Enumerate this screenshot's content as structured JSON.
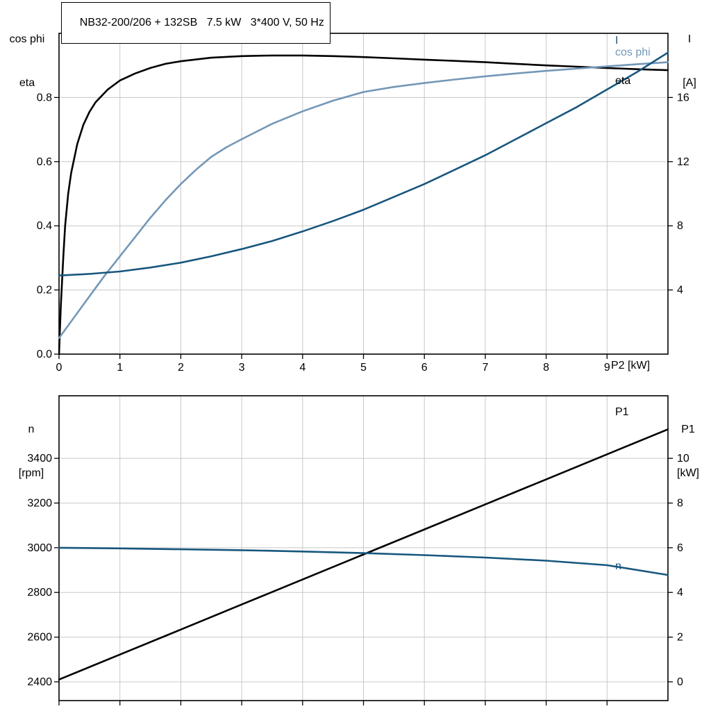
{
  "window": {
    "background": "#ffffff"
  },
  "colors": {
    "eta": "#000000",
    "cos_phi": "#7397B7",
    "current": "#17567E",
    "grid": "#c8c8c8",
    "frame": "#000000"
  },
  "title_box": {
    "text": "NB32-200/206 + 132SB   7.5 kW   3*400 V, 50 Hz"
  },
  "chart_data": [
    {
      "id": "motor-top",
      "type": "line",
      "title": "NB32-200/206 + 132SB   7.5 kW   3*400 V, 50 Hz",
      "grid": true,
      "legend_position": "right-inside",
      "x_axis": {
        "label": "P2 [kW]",
        "min": 0,
        "max": 10,
        "ticks": [
          0,
          1,
          2,
          3,
          4,
          5,
          6,
          7,
          8,
          9
        ],
        "tick_labels": [
          "0",
          "1",
          "2",
          "3",
          "4",
          "5",
          "6",
          "7",
          "8",
          "9"
        ]
      },
      "y_left": {
        "title_lines": [
          "cos phi",
          "eta"
        ],
        "min": 0,
        "max": 1.0,
        "ticks": [
          0,
          0.2,
          0.4,
          0.6,
          0.8
        ],
        "tick_labels": [
          "0.0",
          "0.2",
          "0.4",
          "0.6",
          "0.8"
        ]
      },
      "y_right": {
        "title_lines": [
          "I",
          "[A]"
        ],
        "min": 0,
        "max": 20,
        "ticks": [
          4,
          8,
          12,
          16
        ],
        "tick_labels": [
          "4",
          "8",
          "12",
          "16"
        ]
      },
      "series": [
        {
          "name": "eta",
          "axis": "left",
          "color": "#000000",
          "x": [
            0,
            0.03,
            0.07,
            0.1,
            0.15,
            0.2,
            0.3,
            0.4,
            0.5,
            0.6,
            0.8,
            1,
            1.25,
            1.5,
            1.75,
            2,
            2.5,
            3,
            3.5,
            4,
            4.5,
            5,
            5.5,
            6,
            6.5,
            7,
            7.5,
            8,
            8.5,
            9,
            9.5,
            10
          ],
          "values": [
            0,
            0.15,
            0.3,
            0.4,
            0.5,
            0.565,
            0.655,
            0.715,
            0.755,
            0.785,
            0.825,
            0.853,
            0.875,
            0.892,
            0.905,
            0.913,
            0.924,
            0.929,
            0.931,
            0.931,
            0.929,
            0.926,
            0.922,
            0.918,
            0.914,
            0.91,
            0.905,
            0.9,
            0.896,
            0.892,
            0.888,
            0.885
          ]
        },
        {
          "name": "cos phi",
          "axis": "left",
          "color": "#7397B7",
          "x": [
            0,
            0.25,
            0.5,
            0.75,
            1,
            1.25,
            1.5,
            1.75,
            2,
            2.25,
            2.5,
            2.75,
            3,
            3.5,
            4,
            4.5,
            5,
            5.5,
            6,
            6.5,
            7,
            7.5,
            8,
            8.5,
            9,
            9.5,
            10
          ],
          "values": [
            0.05,
            0.115,
            0.18,
            0.245,
            0.305,
            0.365,
            0.425,
            0.48,
            0.53,
            0.575,
            0.615,
            0.645,
            0.67,
            0.718,
            0.757,
            0.79,
            0.817,
            0.833,
            0.845,
            0.856,
            0.866,
            0.875,
            0.883,
            0.89,
            0.897,
            0.904,
            0.91
          ]
        },
        {
          "name": "I",
          "axis": "right",
          "color": "#17567E",
          "x": [
            0,
            0.5,
            1,
            1.5,
            2,
            2.5,
            3,
            3.5,
            4,
            4.5,
            5,
            5.5,
            6,
            6.5,
            7,
            7.5,
            8,
            8.5,
            9,
            9.5,
            10
          ],
          "values": [
            4.9,
            5.0,
            5.15,
            5.4,
            5.7,
            6.1,
            6.55,
            7.05,
            7.65,
            8.3,
            9.0,
            9.8,
            10.6,
            11.5,
            12.4,
            13.4,
            14.4,
            15.4,
            16.5,
            17.6,
            18.8
          ]
        }
      ],
      "curve_labels": [
        {
          "text": "I",
          "color": "#17567E"
        },
        {
          "text": "cos phi",
          "color": "#7397B7"
        },
        {
          "text": "eta",
          "color": "#000000"
        }
      ]
    },
    {
      "id": "motor-bottom",
      "type": "line",
      "title": "",
      "grid": true,
      "legend_position": "right-inside",
      "x_axis": {
        "label": "",
        "min": 0,
        "max": 10,
        "ticks": [
          0,
          1,
          2,
          3,
          4,
          5,
          6,
          7,
          8,
          9
        ],
        "tick_labels": []
      },
      "y_left": {
        "title_lines": [
          "n",
          "[rpm]"
        ],
        "min": 2316,
        "max": 3680,
        "ticks": [
          2400,
          2600,
          2800,
          3000,
          3200,
          3400
        ],
        "tick_labels": [
          "2400",
          "2600",
          "2800",
          "3000",
          "3200",
          "3400"
        ]
      },
      "y_right": {
        "title_lines": [
          "P1",
          "[kW]"
        ],
        "min": -0.84,
        "max": 12.8,
        "ticks": [
          0,
          2,
          4,
          6,
          8,
          10
        ],
        "tick_labels": [
          "0",
          "2",
          "4",
          "6",
          "8",
          "10"
        ]
      },
      "series": [
        {
          "name": "P1",
          "axis": "right",
          "color": "#000000",
          "x": [
            0,
            1,
            2,
            3,
            4,
            5,
            6,
            7,
            8,
            9,
            10
          ],
          "values": [
            0.1,
            1.22,
            2.34,
            3.46,
            4.58,
            5.7,
            6.82,
            7.94,
            9.06,
            10.18,
            11.3
          ]
        },
        {
          "name": "n",
          "axis": "left",
          "color": "#17567E",
          "x": [
            0,
            1,
            2,
            3,
            4,
            5,
            6,
            7,
            8,
            9,
            10
          ],
          "values": [
            3000,
            2997,
            2993,
            2989,
            2983,
            2976,
            2967,
            2956,
            2942,
            2922,
            2878
          ]
        }
      ],
      "curve_labels": [
        {
          "text": "P1",
          "color": "#000000"
        },
        {
          "text": "n",
          "color": "#17567E"
        }
      ]
    }
  ]
}
